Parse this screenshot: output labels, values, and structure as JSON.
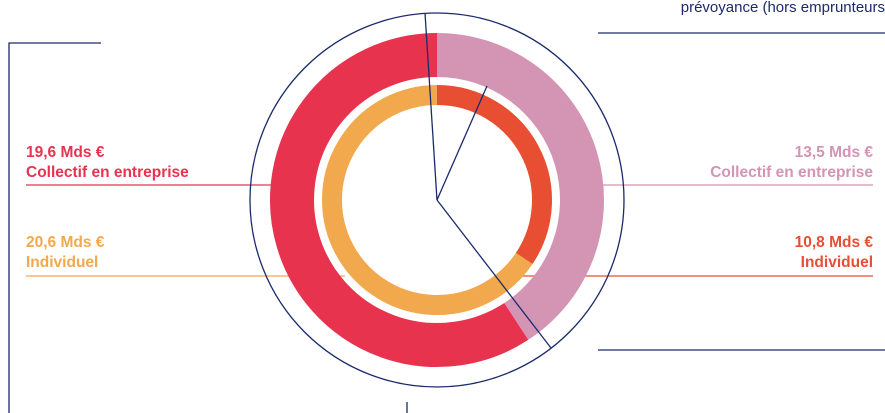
{
  "colors": {
    "navy": "#1b2a6b",
    "collectif_gauche": "#e8334f",
    "individuel_gauche": "#f2a84c",
    "collectif_droite": "#d494b4",
    "individuel_droite": "#e84e32"
  },
  "top_note": "prévoyance (hors emprunteurs",
  "chart_data": {
    "type": "pie",
    "outer_ring": [
      {
        "value": 19.6,
        "color": "#e8334f"
      },
      {
        "value": 13.5,
        "color": "#d494b4"
      }
    ],
    "inner_ring": [
      {
        "value": 20.6,
        "color": "#f2a84c"
      },
      {
        "value": 10.8,
        "color": "#e84e32"
      }
    ],
    "labels": {
      "left_collectif": {
        "value": "19,6 Mds €",
        "name": "Collectif en entreprise",
        "color": "#e8334f"
      },
      "left_individuel": {
        "value": "20,6 Mds €",
        "name": "Individuel",
        "color": "#f2a84c"
      },
      "right_collectif": {
        "value": "13,5 Mds €",
        "name": "Collectif en entreprise",
        "color": "#d494b4"
      },
      "right_individuel": {
        "value": "10,8 Mds €",
        "name": "Individuel",
        "color": "#e84e32"
      }
    }
  }
}
